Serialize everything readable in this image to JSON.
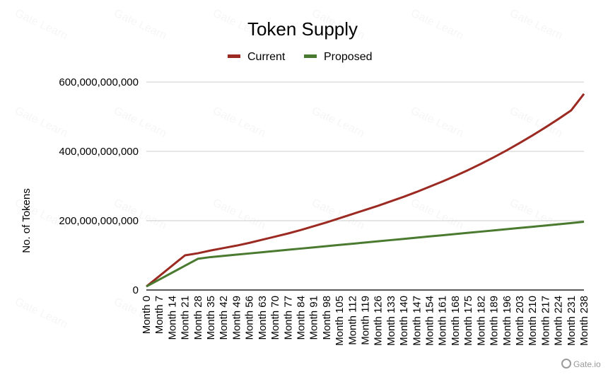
{
  "chart_data": {
    "type": "line",
    "title": "Token Supply",
    "xlabel": "",
    "ylabel": "No. of Tokens",
    "ylim": [
      0,
      600000000000
    ],
    "yticks": [
      0,
      200000000000,
      400000000000,
      600000000000
    ],
    "ytick_labels": [
      "0",
      "200,000,000,000",
      "400,000,000,000",
      "600,000,000,000"
    ],
    "grid": true,
    "legend_position": "top-center",
    "categories": [
      "Month 0",
      "Month 7",
      "Month 14",
      "Month 21",
      "Month 28",
      "Month 35",
      "Month 42",
      "Month 49",
      "Month 56",
      "Month 63",
      "Month 70",
      "Month 77",
      "Month 84",
      "Month 91",
      "Month 98",
      "Month 105",
      "Month 112",
      "Month 119",
      "Month 126",
      "Month 133",
      "Month 140",
      "Month 147",
      "Month 154",
      "Month 161",
      "Month 168",
      "Month 175",
      "Month 182",
      "Month 189",
      "Month 196",
      "Month 203",
      "Month 210",
      "Month 217",
      "Month 224",
      "Month 231",
      "Month 238"
    ],
    "series": [
      {
        "name": "Current",
        "color": "#9b2a22",
        "values": [
          10000000000,
          40000000000,
          70000000000,
          100000000000,
          106000000000,
          114000000000,
          121000000000,
          128000000000,
          136000000000,
          145000000000,
          154000000000,
          163000000000,
          173000000000,
          184000000000,
          195000000000,
          207000000000,
          219000000000,
          231000000000,
          243000000000,
          256000000000,
          269000000000,
          283000000000,
          298000000000,
          313000000000,
          329000000000,
          346000000000,
          364000000000,
          383000000000,
          403000000000,
          424000000000,
          446000000000,
          469000000000,
          493000000000,
          518000000000,
          566000000000
        ]
      },
      {
        "name": "Proposed",
        "color": "#4a7a2f",
        "values": [
          10000000000,
          30000000000,
          50000000000,
          70000000000,
          90000000000,
          95000000000,
          98500000000,
          102000000000,
          105500000000,
          109000000000,
          112500000000,
          116000000000,
          119500000000,
          123000000000,
          126500000000,
          130000000000,
          133500000000,
          137000000000,
          140500000000,
          144000000000,
          147500000000,
          151000000000,
          154500000000,
          158000000000,
          161500000000,
          165000000000,
          168500000000,
          172000000000,
          175500000000,
          179000000000,
          182500000000,
          186000000000,
          189500000000,
          193000000000,
          197000000000
        ]
      }
    ]
  },
  "watermark": {
    "text": "Gate Learn",
    "brand": "Gate.io"
  },
  "colors": {
    "grid": "#cccccc",
    "axis": "#222222",
    "text": "#000000"
  }
}
